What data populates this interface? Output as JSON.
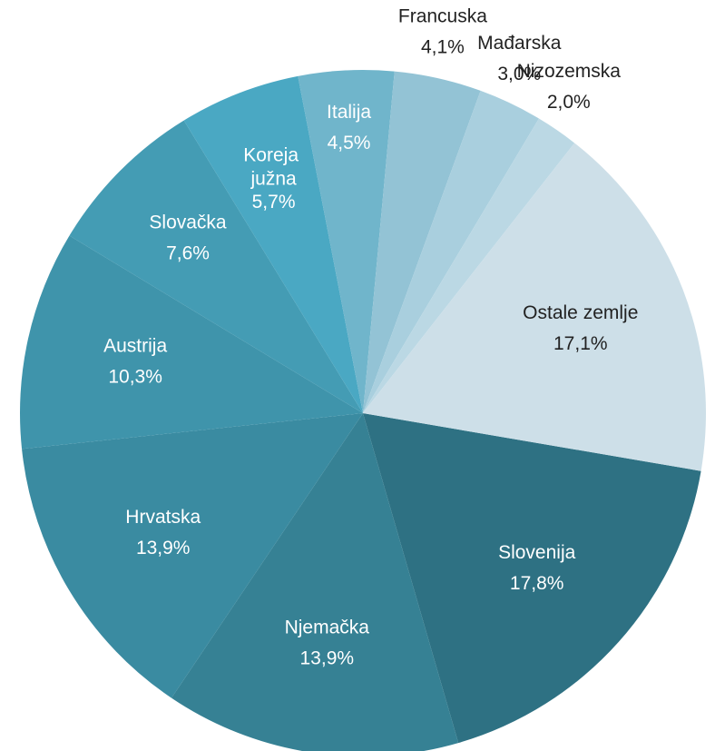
{
  "chart_data": {
    "type": "pie",
    "categories": [
      "Slovenija",
      "Njemačka",
      "Hrvatska",
      "Austrija",
      "Slovačka",
      "Koreja južna",
      "Italija",
      "Francuska",
      "Mađarska",
      "Nizozemska",
      "Ostale zemlje"
    ],
    "values": [
      17.8,
      13.9,
      13.9,
      10.3,
      7.6,
      5.7,
      4.5,
      4.1,
      3.0,
      2.0,
      17.1
    ],
    "value_labels": [
      "17,8%",
      "13,9%",
      "13,9%",
      "10,3%",
      "7,6%",
      "5,7%",
      "4,5%",
      "4,1%",
      "3,0%",
      "2,0%",
      "17,1%"
    ],
    "colors": [
      "#2e7183",
      "#368194",
      "#3a8ba1",
      "#3f94ab",
      "#449cb4",
      "#4aa8c3",
      "#70b5cb",
      "#93c3d5",
      "#a9cfde",
      "#bbd8e4",
      "#cddfe8"
    ]
  }
}
